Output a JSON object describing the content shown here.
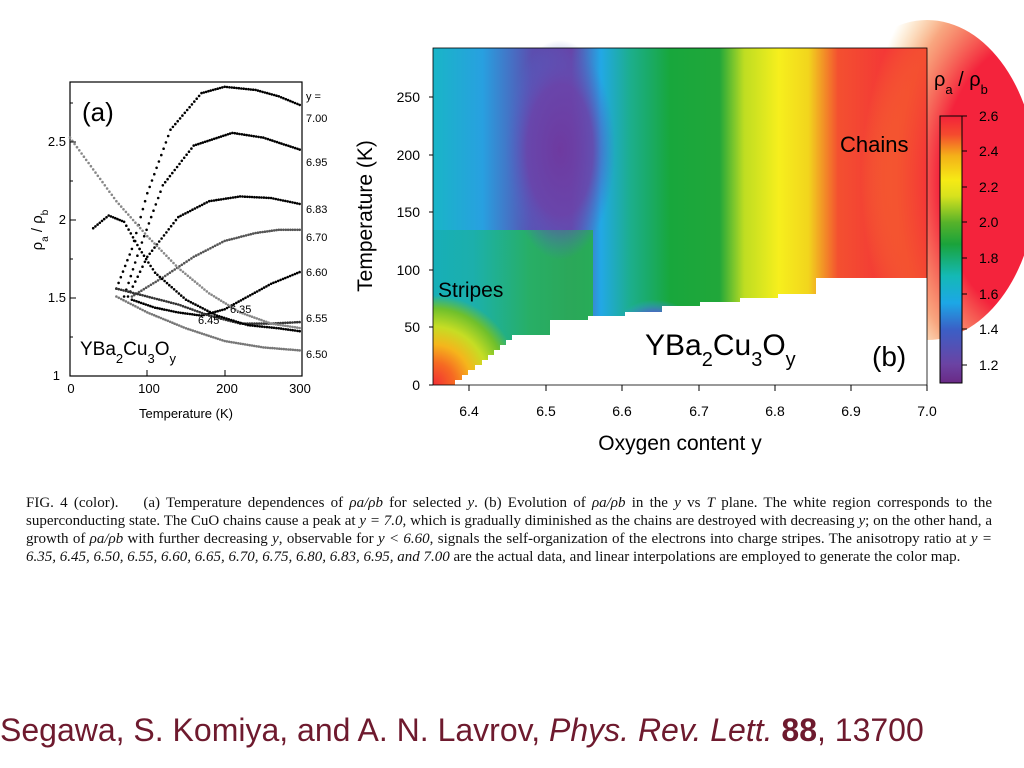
{
  "panel_a": {
    "panel_label": "(a)",
    "compound_label": "YBa2Cu3Oy",
    "xlabel": "Temperature (K)",
    "y_header": "y =",
    "x_ticks": [
      "0",
      "100",
      "200",
      "300"
    ],
    "y_ticks": [
      "1",
      "1.5",
      "2",
      "2.5"
    ],
    "curve_labels_right": [
      "7.00",
      "6.95",
      "6.83",
      "6.70",
      "6.60",
      "6.55",
      "6.50"
    ],
    "curve_labels_inner": [
      "6.35",
      "6.45"
    ]
  },
  "panel_b": {
    "panel_label": "(b)",
    "compound_label": "YBa2Cu3Oy",
    "xlabel": "Oxygen content  y",
    "ylabel": "Temperature (K)",
    "x_ticks": [
      "6.4",
      "6.5",
      "6.6",
      "6.7",
      "6.8",
      "6.9",
      "7.0"
    ],
    "y_ticks": [
      "0",
      "50",
      "100",
      "150",
      "200",
      "250"
    ],
    "region_chains": "Chains",
    "region_stripes": "Stripes",
    "colorbar_title": "ρa / ρb",
    "colorbar_ticks": [
      "1.2",
      "1.4",
      "1.6",
      "1.8",
      "2.0",
      "2.2",
      "2.4",
      "2.6"
    ]
  },
  "caption": {
    "lead": "FIG. 4 (color).",
    "p1": "(a) Temperature dependences of ",
    "p2": " for selected ",
    "p3": ".  (b) Evolution of ",
    "p4": " in the ",
    "p5": " vs ",
    "p6": " plane.  The white region corresponds to the superconducting state.  The CuO chains cause a peak at ",
    "p7": ", which is gradually diminished as the chains are destroyed with decreasing ",
    "p8": "; on the other hand, a growth of ",
    "p9": " with further decreasing ",
    "p10": ", observable for ",
    "p11": ", signals the self-organization of the electrons into charge stripes. The anisotropy ratio at ",
    "p12": " are the actual data, and linear interpolations are employed to generate the color map.",
    "ratio": "ρa/ρb",
    "var_y": "y",
    "var_T": "T",
    "eq_y70": "y = 7.0",
    "ineq": "y < 6.60",
    "eq_list": "y = 6.35, 6.45, 6.50, 6.55, 6.60, 6.65, 6.70, 6.75, 6.80, 6.83, 6.95, and 7.00"
  },
  "citation": {
    "authors": "Segawa, S. Komiya, and A. N. Lavrov, ",
    "journal": "Phys. Rev. Lett.",
    "volume": "88",
    "tail": ", 13700"
  },
  "chart_data": [
    {
      "type": "scatter",
      "panel": "(a)",
      "xlabel": "Temperature (K)",
      "ylabel": "ρa / ρb",
      "xlim": [
        0,
        300
      ],
      "ylim": [
        1,
        2.85
      ],
      "series": [
        {
          "name": "7.00",
          "x": [
            60,
            80,
            100,
            130,
            170,
            200,
            240,
            270,
            300
          ],
          "y": [
            1.55,
            1.8,
            2.15,
            2.55,
            2.78,
            2.82,
            2.8,
            2.76,
            2.7
          ]
        },
        {
          "name": "6.95",
          "x": [
            70,
            90,
            120,
            160,
            210,
            250,
            300
          ],
          "y": [
            1.5,
            1.8,
            2.2,
            2.45,
            2.53,
            2.5,
            2.42
          ]
        },
        {
          "name": "6.83",
          "x": [
            75,
            100,
            140,
            180,
            220,
            260,
            300
          ],
          "y": [
            1.5,
            1.75,
            2.0,
            2.1,
            2.13,
            2.12,
            2.08
          ]
        },
        {
          "name": "6.70",
          "x": [
            80,
            120,
            160,
            200,
            240,
            270,
            300
          ],
          "y": [
            1.5,
            1.62,
            1.75,
            1.85,
            1.9,
            1.92,
            1.92
          ]
        },
        {
          "name": "6.60",
          "x": [
            80,
            110,
            140,
            170,
            200,
            230,
            260,
            300
          ],
          "y": [
            1.48,
            1.43,
            1.4,
            1.38,
            1.42,
            1.5,
            1.58,
            1.66
          ]
        },
        {
          "name": "6.55",
          "x": [
            60,
            100,
            140,
            180,
            220,
            260,
            300
          ],
          "y": [
            1.55,
            1.5,
            1.45,
            1.38,
            1.33,
            1.33,
            1.34
          ]
        },
        {
          "name": "6.50",
          "x": [
            60,
            100,
            150,
            200,
            250,
            300
          ],
          "y": [
            1.5,
            1.4,
            1.3,
            1.22,
            1.18,
            1.16
          ]
        },
        {
          "name": "6.45",
          "x": [
            30,
            50,
            70,
            90,
            110,
            150,
            190,
            230,
            270,
            300
          ],
          "y": [
            1.93,
            2.01,
            1.97,
            1.8,
            1.65,
            1.48,
            1.38,
            1.32,
            1.3,
            1.28
          ]
        },
        {
          "name": "6.35",
          "x": [
            0,
            30,
            60,
            100,
            140,
            180,
            220,
            260,
            300
          ],
          "y": [
            2.5,
            2.3,
            2.1,
            1.88,
            1.68,
            1.52,
            1.4,
            1.33,
            1.3
          ]
        }
      ]
    },
    {
      "type": "heatmap",
      "panel": "(b)",
      "xlabel": "Oxygen content  y",
      "ylabel": "Temperature (K)",
      "xlim": [
        6.35,
        7.0
      ],
      "ylim": [
        0,
        290
      ],
      "colorbar_label": "ρa / ρb",
      "colorbar_range": [
        1.1,
        2.6
      ],
      "annotations": [
        "Chains",
        "Stripes",
        "YBa2Cu3Oy",
        "(b)"
      ]
    }
  ]
}
